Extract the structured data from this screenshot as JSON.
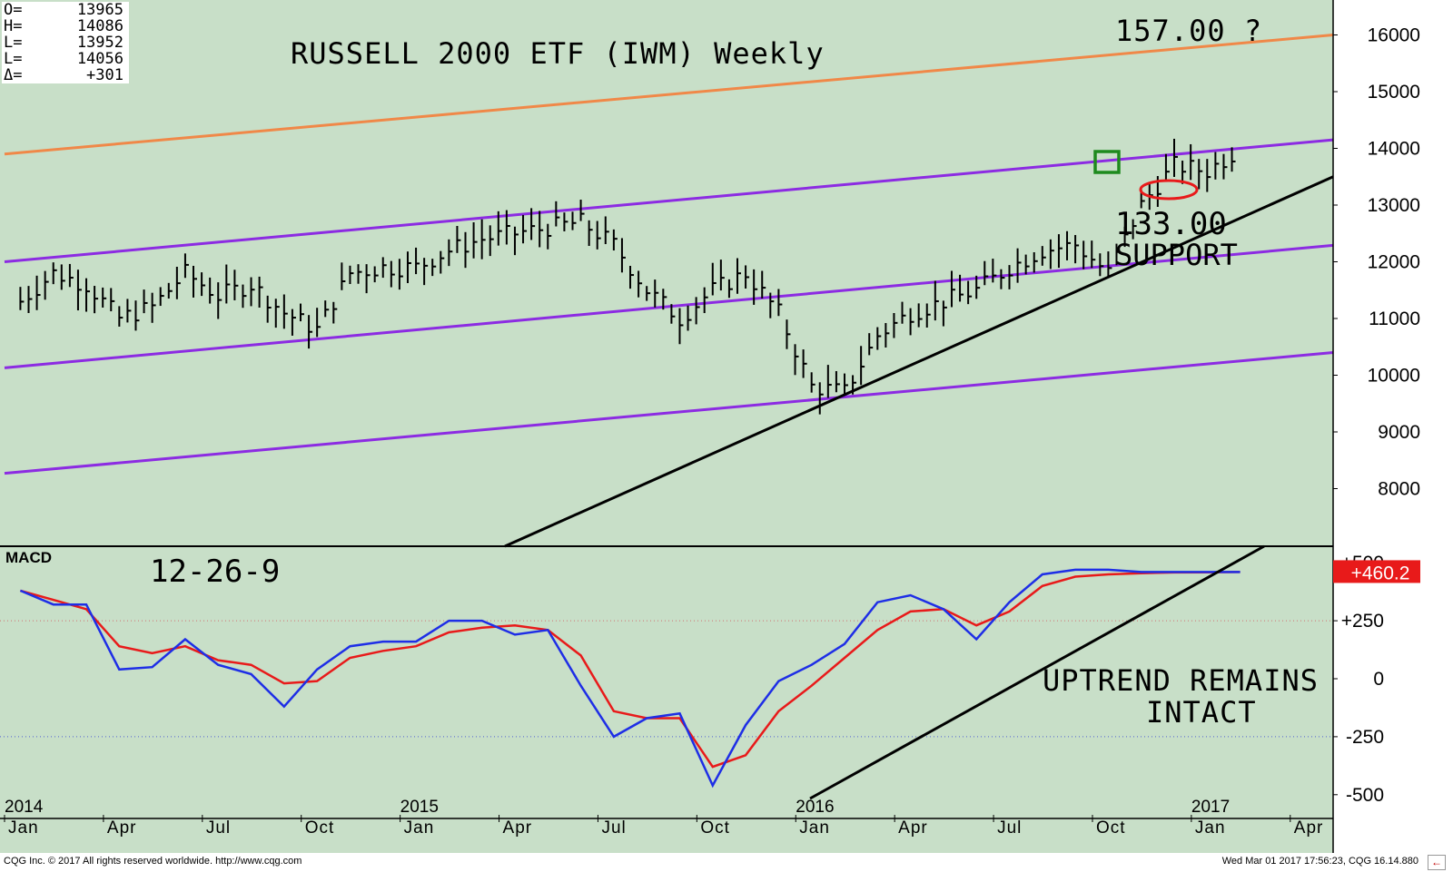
{
  "header": {
    "title": "RUSSELL 2000 ETF (IWM) Weekly",
    "ohlc": [
      {
        "label": "O=",
        "value": "13965"
      },
      {
        "label": "H=",
        "value": "14086"
      },
      {
        "label": "L=",
        "value": "13952"
      },
      {
        "label": "L=",
        "value": "14056"
      },
      {
        "label": "Δ=",
        "value": "+301"
      }
    ]
  },
  "annotations": {
    "target": "157.00 ?",
    "support_value": "133.00",
    "support_label": "SUPPORT",
    "macd_params": "12-26-9",
    "uptrend_1": "UPTREND REMAINS",
    "uptrend_2": "INTACT"
  },
  "footer": {
    "left": "CQG Inc. © 2017 All rights reserved worldwide. http://www.cqg.com",
    "right": "Wed Mar 01 2017 17:56:23, CQG 16.14.880",
    "nav_arrow": "←"
  },
  "colors": {
    "background": "#c8dfc8",
    "orange_channel": "#f08848",
    "purple_channel": "#8c2be2",
    "trendline": "#000000",
    "macd_line": "#1e2ee6",
    "signal_line": "#e81a1a",
    "marker_box": "#1e8a1e",
    "marker_ellipse": "#e81a1a",
    "macd_value_bg": "#e81a1a"
  },
  "chart_data": [
    {
      "type": "line",
      "panel": "price",
      "chart_kind": "weekly OHLC bars",
      "y_axis_ticks": [
        8000,
        9000,
        10000,
        11000,
        12000,
        13000,
        14000,
        15000,
        16000
      ],
      "ylim": [
        7100,
        16700
      ],
      "x_year_labels": [
        "2014",
        "2015",
        "2016",
        "2017"
      ],
      "x_month_labels": [
        "Jan",
        "Apr",
        "Jul",
        "Oct",
        "Jan",
        "Apr",
        "Jul",
        "Oct",
        "Jan",
        "Apr",
        "Jul",
        "Oct",
        "Jan",
        "Apr"
      ],
      "series": [
        {
          "x": [
            "2014-01",
            "2014-02",
            "2014-03",
            "2014-04",
            "2014-05",
            "2014-06",
            "2014-07",
            "2014-08",
            "2014-09",
            "2014-10",
            "2014-11",
            "2014-12",
            "2015-01",
            "2015-02",
            "2015-03",
            "2015-04",
            "2015-05",
            "2015-06",
            "2015-07",
            "2015-08",
            "2015-09",
            "2015-10",
            "2015-11",
            "2015-12",
            "2016-01",
            "2016-02",
            "2016-03",
            "2016-04",
            "2016-05",
            "2016-06",
            "2016-07",
            "2016-08",
            "2016-09",
            "2016-10",
            "2016-11",
            "2016-12",
            "2017-01",
            "2017-02"
          ],
          "values": [
            11300,
            11800,
            11600,
            11000,
            11200,
            11800,
            11400,
            11600,
            11100,
            10800,
            11800,
            11900,
            11900,
            12200,
            12400,
            12500,
            12600,
            12700,
            12300,
            11500,
            11000,
            11500,
            11800,
            11100,
            9800,
            9700,
            10700,
            11100,
            11300,
            11500,
            11900,
            12200,
            12300,
            11800,
            13000,
            13700,
            13600,
            14000
          ]
        }
      ],
      "channel_lines": [
        {
          "color": "orange",
          "start": 13900,
          "end": 16000
        },
        {
          "color": "purple",
          "start": 12000,
          "end": 14150
        },
        {
          "color": "purple",
          "start": 10130,
          "end": 12290
        },
        {
          "color": "purple",
          "start": 8270,
          "end": 10400
        }
      ],
      "trendline": {
        "start": 7100,
        "end": 13500
      }
    },
    {
      "type": "line",
      "panel": "MACD",
      "y_axis_ticks": [
        "-500",
        "-250",
        "0",
        "+250",
        "+500"
      ],
      "ylim": [
        -510,
        510
      ],
      "last_value": "+460.2",
      "x": [
        "2014-01",
        "2014-02",
        "2014-03",
        "2014-04",
        "2014-05",
        "2014-06",
        "2014-07",
        "2014-08",
        "2014-09",
        "2014-10",
        "2014-11",
        "2014-12",
        "2015-01",
        "2015-02",
        "2015-03",
        "2015-04",
        "2015-05",
        "2015-06",
        "2015-07",
        "2015-08",
        "2015-09",
        "2015-10",
        "2015-11",
        "2015-12",
        "2016-01",
        "2016-02",
        "2016-03",
        "2016-04",
        "2016-05",
        "2016-06",
        "2016-07",
        "2016-08",
        "2016-09",
        "2016-10",
        "2016-11",
        "2016-12",
        "2017-01",
        "2017-02"
      ],
      "series": [
        {
          "values": [
            380,
            320,
            320,
            40,
            50,
            170,
            60,
            20,
            -120,
            40,
            140,
            160,
            160,
            250,
            250,
            190,
            210,
            -30,
            -250,
            -170,
            -150,
            -460,
            -200,
            -10,
            60,
            150,
            330,
            360,
            300,
            170,
            330,
            450,
            470,
            470,
            460,
            460,
            460,
            460
          ]
        },
        {
          "values": [
            380,
            340,
            300,
            140,
            110,
            140,
            80,
            60,
            -20,
            -10,
            90,
            120,
            140,
            200,
            220,
            230,
            210,
            100,
            -140,
            -170,
            -170,
            -380,
            -330,
            -140,
            -30,
            90,
            210,
            290,
            300,
            230,
            290,
            400,
            440,
            450,
            455,
            458,
            459,
            460
          ]
        }
      ]
    }
  ]
}
